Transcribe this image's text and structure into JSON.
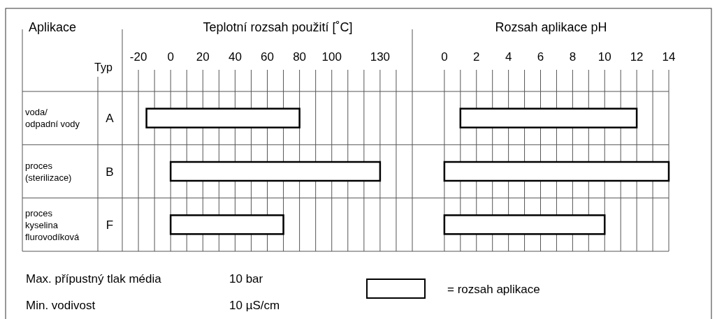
{
  "chart_data": [
    {
      "type": "other",
      "title": "Aplikace",
      "annotations": [
        "voda/\nodpadní vody",
        "proces\n(sterilizace)",
        "proces\nkyselina\nflurovodíková",
        "Max. přípustný tlak média",
        "10 bar",
        "Min.  vodivost",
        "10 µS/cm"
      ]
    },
    {
      "type": "bar",
      "orientation": "horizontal",
      "title": "Teplotní rozsah použití [˚C]",
      "ylabel": "Typ",
      "categories": [
        "A",
        "B",
        "F"
      ],
      "series": [
        {
          "color": "#ffffff",
          "base": [
            -15,
            0,
            0
          ],
          "values": [
            95,
            130,
            70
          ]
        }
      ],
      "xlim": [
        -30,
        150
      ],
      "xticks": [
        {
          "value": -20,
          "label": "-20"
        },
        {
          "value": -10,
          "label": null
        },
        0,
        {
          "value": 10,
          "label": null
        },
        20,
        {
          "value": 30,
          "label": null
        },
        40,
        {
          "value": 50,
          "label": null
        },
        60,
        {
          "value": 70,
          "label": null
        },
        80,
        {
          "value": 90,
          "label": null
        },
        100,
        {
          "value": 110,
          "label": null
        },
        {
          "value": 120,
          "label": null
        },
        130,
        {
          "value": 140,
          "label": null
        }
      ],
      "grid": "x"
    },
    {
      "type": "bar",
      "orientation": "horizontal",
      "title": "Rozsah aplikace pH",
      "categories": [
        null,
        null,
        null
      ],
      "series": [
        {
          "name": "= rozsah aplikace",
          "color": "#ffffff",
          "base": [
            1,
            0,
            0
          ],
          "values": [
            11,
            14,
            10
          ]
        }
      ],
      "xlim": [
        -2,
        14
      ],
      "xticks": [
        0,
        {
          "value": 1,
          "label": null
        },
        2,
        {
          "value": 3,
          "label": null
        },
        4,
        {
          "value": 5,
          "label": null
        },
        6,
        {
          "value": 7,
          "label": null
        },
        8,
        {
          "value": 9,
          "label": null
        },
        10,
        {
          "value": 11,
          "label": null
        },
        12,
        {
          "value": 13,
          "label": null
        },
        14
      ],
      "grid": "x",
      "legend": "bottom"
    }
  ]
}
